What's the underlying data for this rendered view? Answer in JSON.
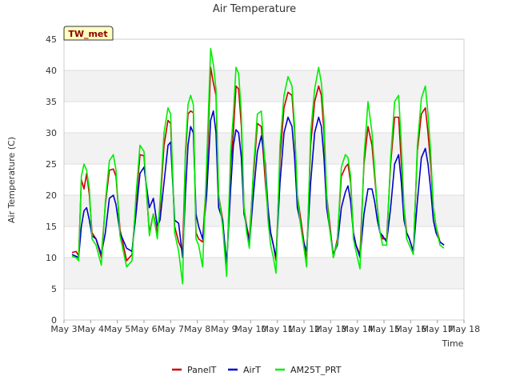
{
  "chart_data": {
    "type": "line",
    "title": "Air Temperature",
    "xlabel": "Time",
    "ylabel": "Air Temperature (C)",
    "badge": "TW_met",
    "ylim": [
      0,
      45
    ],
    "yticks": [
      0,
      5,
      10,
      15,
      20,
      25,
      30,
      35,
      40,
      45
    ],
    "xlim": [
      3,
      18
    ],
    "xticks": [
      {
        "v": 3,
        "label": "May 3"
      },
      {
        "v": 4,
        "label": "May 4"
      },
      {
        "v": 5,
        "label": "May 5"
      },
      {
        "v": 6,
        "label": "May 6"
      },
      {
        "v": 7,
        "label": "May 7"
      },
      {
        "v": 8,
        "label": "May 8"
      },
      {
        "v": 9,
        "label": "May 9"
      },
      {
        "v": 10,
        "label": "May 10"
      },
      {
        "v": 11,
        "label": "May 11"
      },
      {
        "v": 12,
        "label": "May 12"
      },
      {
        "v": 13,
        "label": "May 13"
      },
      {
        "v": 14,
        "label": "May 14"
      },
      {
        "v": 15,
        "label": "May 15"
      },
      {
        "v": 16,
        "label": "May 16"
      },
      {
        "v": 17,
        "label": "May 17"
      },
      {
        "v": 18,
        "label": "May 18"
      }
    ],
    "bands": true,
    "series": [
      {
        "name": "PanelT",
        "color": "#cc0000",
        "x": [
          3.3,
          3.45,
          3.55,
          3.65,
          3.75,
          3.85,
          3.95,
          4.05,
          4.2,
          4.4,
          4.55,
          4.7,
          4.85,
          4.95,
          5.1,
          5.35,
          5.55,
          5.7,
          5.85,
          6.0,
          6.2,
          6.35,
          6.5,
          6.6,
          6.75,
          6.9,
          7.0,
          7.15,
          7.3,
          7.45,
          7.55,
          7.65,
          7.75,
          7.85,
          7.95,
          8.05,
          8.2,
          8.35,
          8.5,
          8.6,
          8.7,
          8.8,
          8.95,
          9.1,
          9.25,
          9.35,
          9.45,
          9.55,
          9.65,
          9.75,
          9.85,
          9.95,
          10.1,
          10.25,
          10.4,
          10.55,
          10.65,
          10.75,
          10.85,
          10.95,
          11.1,
          11.25,
          11.4,
          11.55,
          11.65,
          11.75,
          11.85,
          11.95,
          12.1,
          12.25,
          12.4,
          12.55,
          12.65,
          12.75,
          12.85,
          12.95,
          13.1,
          13.25,
          13.4,
          13.55,
          13.65,
          13.75,
          13.85,
          13.95,
          14.1,
          14.25,
          14.4,
          14.55,
          14.65,
          14.75,
          14.85,
          14.95,
          15.1,
          15.25,
          15.4,
          15.55,
          15.65,
          15.75,
          15.85,
          15.95,
          16.1,
          16.25,
          16.4,
          16.55,
          16.65,
          16.75,
          16.85,
          16.95,
          17.1,
          17.25
        ],
        "y": [
          10.8,
          11.0,
          10.3,
          22.5,
          21.0,
          23.5,
          20.0,
          14.0,
          13.0,
          10.0,
          18.5,
          24.0,
          24.2,
          23.0,
          14.5,
          9.5,
          10.5,
          19.0,
          26.5,
          26.3,
          14.0,
          17.0,
          14.0,
          18.0,
          28.0,
          32.0,
          31.5,
          15.0,
          12.5,
          11.0,
          26.0,
          33.0,
          33.5,
          33.2,
          14.0,
          13.0,
          12.5,
          23.0,
          40.5,
          38.0,
          36.0,
          20.0,
          16.0,
          8.0,
          25.0,
          30.0,
          37.5,
          37.0,
          31.0,
          18.0,
          15.0,
          13.0,
          23.0,
          31.5,
          31.0,
          22.0,
          17.0,
          14.0,
          12.0,
          9.5,
          26.0,
          34.0,
          36.5,
          36.0,
          30.0,
          20.0,
          17.0,
          14.0,
          9.5,
          28.0,
          35.0,
          37.5,
          36.0,
          30.0,
          20.0,
          16.0,
          10.0,
          13.0,
          23.0,
          24.5,
          25.0,
          22.0,
          14.0,
          12.0,
          10.5,
          25.0,
          31.0,
          28.0,
          23.0,
          18.0,
          14.0,
          13.0,
          13.0,
          25.0,
          32.5,
          32.5,
          25.0,
          18.0,
          14.0,
          13.0,
          11.0,
          27.0,
          33.0,
          34.0,
          30.0,
          25.0,
          18.0,
          15.0,
          12.5,
          12.0
        ]
      },
      {
        "name": "AirT",
        "color": "#0000cc",
        "x": [
          3.3,
          3.45,
          3.55,
          3.65,
          3.75,
          3.85,
          3.95,
          4.05,
          4.2,
          4.4,
          4.55,
          4.7,
          4.85,
          4.95,
          5.1,
          5.35,
          5.55,
          5.7,
          5.85,
          6.0,
          6.2,
          6.35,
          6.5,
          6.6,
          6.75,
          6.9,
          7.0,
          7.15,
          7.3,
          7.45,
          7.55,
          7.65,
          7.75,
          7.85,
          7.95,
          8.05,
          8.2,
          8.35,
          8.5,
          8.6,
          8.7,
          8.8,
          8.95,
          9.1,
          9.25,
          9.35,
          9.45,
          9.55,
          9.65,
          9.75,
          9.85,
          9.95,
          10.1,
          10.25,
          10.4,
          10.55,
          10.65,
          10.75,
          10.85,
          10.95,
          11.1,
          11.25,
          11.4,
          11.55,
          11.65,
          11.75,
          11.85,
          11.95,
          12.1,
          12.25,
          12.4,
          12.55,
          12.65,
          12.75,
          12.85,
          12.95,
          13.1,
          13.25,
          13.4,
          13.55,
          13.65,
          13.75,
          13.85,
          13.95,
          14.1,
          14.25,
          14.4,
          14.55,
          14.65,
          14.75,
          14.85,
          14.95,
          15.1,
          15.25,
          15.4,
          15.55,
          15.65,
          15.75,
          15.85,
          15.95,
          16.1,
          16.25,
          16.4,
          16.55,
          16.65,
          16.75,
          16.85,
          16.95,
          17.1,
          17.25
        ],
        "y": [
          10.5,
          10.2,
          10.0,
          15.0,
          17.5,
          18.0,
          16.0,
          13.5,
          13.0,
          10.5,
          14.0,
          19.5,
          20.0,
          18.5,
          14.0,
          11.5,
          11.0,
          17.0,
          23.5,
          24.5,
          18.0,
          19.5,
          15.0,
          16.0,
          22.0,
          28.0,
          28.5,
          16.0,
          15.5,
          10.0,
          20.0,
          28.0,
          31.0,
          30.0,
          17.0,
          15.0,
          13.0,
          20.0,
          32.0,
          33.5,
          30.0,
          18.0,
          16.0,
          9.0,
          21.0,
          28.0,
          30.5,
          30.0,
          26.0,
          17.0,
          15.0,
          12.0,
          20.0,
          27.0,
          29.5,
          25.0,
          18.0,
          14.0,
          12.0,
          10.0,
          22.0,
          30.0,
          32.5,
          31.0,
          26.0,
          18.0,
          16.0,
          13.0,
          11.0,
          22.0,
          30.0,
          32.5,
          31.0,
          26.0,
          18.0,
          15.0,
          10.5,
          12.0,
          18.0,
          20.5,
          21.5,
          19.0,
          14.0,
          12.0,
          10.0,
          17.0,
          21.0,
          21.0,
          19.0,
          16.0,
          14.0,
          13.5,
          12.5,
          18.0,
          25.0,
          26.5,
          22.0,
          16.0,
          14.0,
          13.0,
          11.0,
          19.0,
          26.0,
          27.5,
          25.0,
          21.0,
          16.0,
          14.0,
          12.5,
          12.0
        ]
      },
      {
        "name": "AM25T_PRT",
        "color": "#00ee00",
        "x": [
          3.3,
          3.45,
          3.55,
          3.65,
          3.75,
          3.85,
          3.95,
          4.05,
          4.2,
          4.4,
          4.55,
          4.7,
          4.85,
          4.95,
          5.1,
          5.35,
          5.55,
          5.7,
          5.85,
          6.0,
          6.2,
          6.35,
          6.5,
          6.6,
          6.75,
          6.9,
          7.0,
          7.15,
          7.3,
          7.45,
          7.55,
          7.65,
          7.75,
          7.85,
          7.95,
          8.05,
          8.2,
          8.35,
          8.5,
          8.6,
          8.7,
          8.8,
          8.95,
          9.1,
          9.25,
          9.35,
          9.45,
          9.55,
          9.65,
          9.75,
          9.85,
          9.95,
          10.1,
          10.25,
          10.4,
          10.55,
          10.65,
          10.75,
          10.85,
          10.95,
          11.1,
          11.25,
          11.4,
          11.55,
          11.65,
          11.75,
          11.85,
          11.95,
          12.1,
          12.25,
          12.4,
          12.55,
          12.65,
          12.75,
          12.85,
          12.95,
          13.1,
          13.25,
          13.4,
          13.55,
          13.65,
          13.75,
          13.85,
          13.95,
          14.1,
          14.25,
          14.4,
          14.55,
          14.65,
          14.75,
          14.85,
          14.95,
          15.1,
          15.25,
          15.4,
          15.55,
          15.65,
          15.75,
          15.85,
          15.95,
          16.1,
          16.25,
          16.4,
          16.55,
          16.65,
          16.75,
          16.85,
          16.95,
          17.1,
          17.25
        ],
        "y": [
          10.2,
          10.0,
          9.5,
          23.0,
          25.0,
          24.0,
          21.0,
          13.0,
          12.0,
          8.8,
          19.0,
          25.5,
          26.5,
          24.0,
          13.5,
          8.5,
          9.5,
          20.0,
          28.0,
          27.0,
          13.5,
          17.0,
          13.0,
          19.0,
          30.0,
          34.0,
          33.0,
          14.0,
          11.0,
          5.8,
          27.0,
          34.5,
          36.0,
          34.5,
          13.0,
          12.0,
          8.5,
          25.0,
          43.5,
          41.0,
          37.0,
          20.0,
          15.0,
          7.0,
          27.0,
          33.0,
          40.5,
          39.5,
          33.0,
          18.0,
          14.0,
          11.5,
          24.0,
          33.0,
          33.5,
          24.0,
          16.0,
          12.0,
          10.0,
          7.5,
          28.0,
          36.0,
          39.0,
          37.5,
          31.0,
          20.0,
          16.0,
          13.0,
          8.5,
          30.0,
          37.0,
          40.5,
          38.0,
          32.0,
          20.0,
          15.0,
          10.0,
          12.5,
          24.5,
          26.5,
          26.0,
          23.0,
          13.0,
          11.0,
          8.2,
          26.0,
          35.0,
          30.0,
          24.0,
          18.0,
          14.0,
          12.0,
          12.0,
          26.0,
          35.0,
          36.0,
          28.0,
          18.0,
          13.0,
          12.0,
          10.5,
          28.0,
          35.5,
          37.5,
          33.0,
          27.0,
          18.0,
          15.0,
          12.0,
          11.5
        ]
      }
    ],
    "legend_position": "bottom"
  }
}
